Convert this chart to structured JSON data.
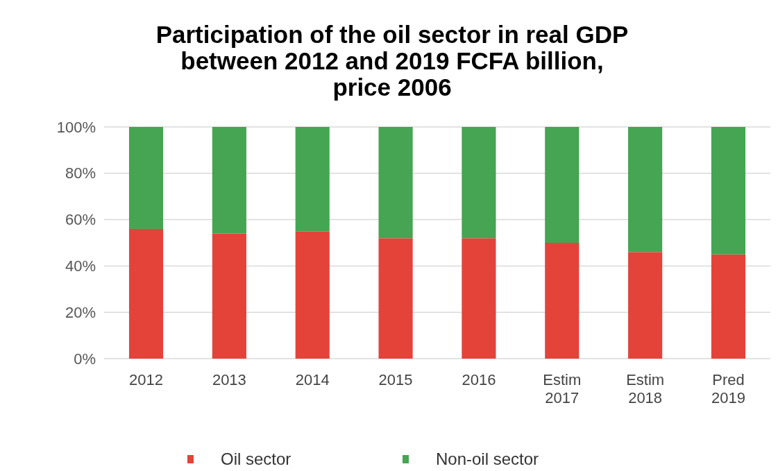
{
  "chart_data": {
    "type": "bar",
    "title": "Participation of the oil sector in real GDP\nbetween 2012 and 2019 FCFA billion,\nprice 2006",
    "categories": [
      "2012",
      "2013",
      "2014",
      "2015",
      "2016",
      "Estim\n2017",
      "Estim\n2018",
      "Pred\n2019"
    ],
    "series": [
      {
        "name": "Oil sector",
        "color": "#e4433a",
        "values": [
          56,
          54,
          55,
          52,
          52,
          50,
          46,
          45
        ]
      },
      {
        "name": "Non-oil sector",
        "color": "#45a552",
        "values": [
          44,
          46,
          45,
          48,
          48,
          50,
          54,
          55
        ]
      }
    ],
    "stacked": true,
    "ylim": [
      0,
      100
    ],
    "yticks": [
      {
        "value": 0,
        "label": "0%"
      },
      {
        "value": 20,
        "label": "20%"
      },
      {
        "value": 40,
        "label": "40%"
      },
      {
        "value": 60,
        "label": "60%"
      },
      {
        "value": 80,
        "label": "80%"
      },
      {
        "value": 100,
        "label": "100%"
      }
    ],
    "grid": "y",
    "legend": "bottom"
  }
}
